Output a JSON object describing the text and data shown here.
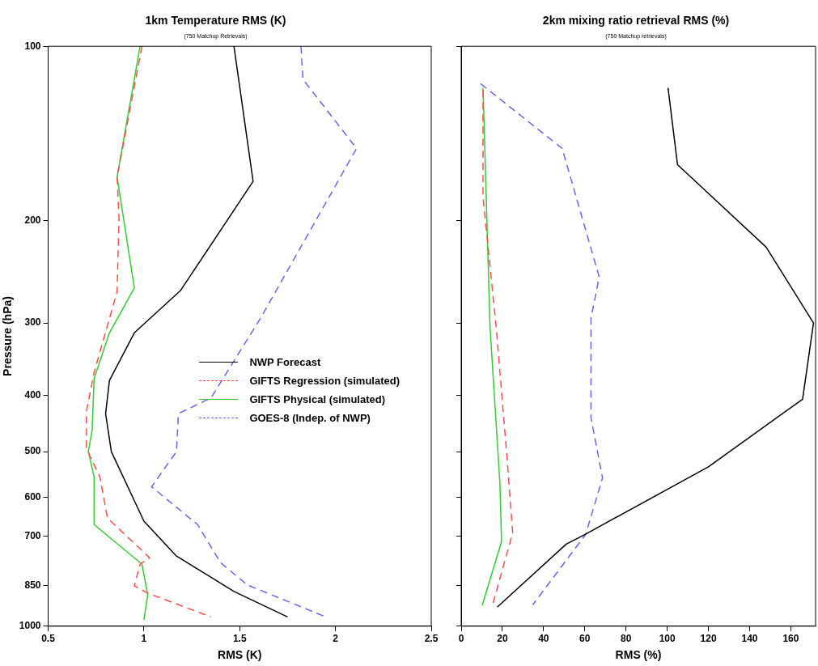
{
  "chart_data": [
    {
      "type": "line",
      "title": "1km Temperature RMS (K)",
      "subtitle": "(750 Matchup Retrievals)",
      "xlabel": "RMS (K)",
      "ylabel": "Pressure (hPa)",
      "xlim": [
        0.5,
        2.5
      ],
      "xticks": [
        0.5,
        1,
        1.5,
        2,
        2.5
      ],
      "ylim": [
        1000,
        100
      ],
      "yticks": [
        100,
        200,
        300,
        400,
        500,
        600,
        700,
        850,
        1000
      ],
      "log": "y",
      "grid": false,
      "legend": "center",
      "series": [
        {
          "name": "NWP Forecast",
          "color": "#000000",
          "line_style": "solid",
          "x": [
            1.47,
            1.57,
            1.19,
            0.95,
            0.82,
            0.8,
            0.83,
            1.0,
            1.17,
            1.47,
            1.75
          ],
          "values": [
            100,
            171,
            264,
            312,
            377,
            430,
            500,
            659,
            757,
            871,
            964
          ]
        },
        {
          "name": "GIFTS Regression (simulated)",
          "color": "#ff4d4d",
          "line_style": "dashed",
          "x": [
            0.99,
            0.86,
            0.87,
            0.86,
            0.74,
            0.7,
            0.7,
            0.77,
            0.81,
            1.03,
            0.98,
            0.95,
            1.02,
            1.35
          ],
          "values": [
            100,
            168,
            198,
            265,
            365,
            426,
            494,
            553,
            651,
            762,
            782,
            852,
            877,
            964
          ]
        },
        {
          "name": "GIFTS Physical (simulated)",
          "color": "#33cc33",
          "line_style": "solid",
          "x": [
            0.98,
            0.86,
            0.95,
            0.82,
            0.74,
            0.73,
            0.71,
            0.74,
            0.74,
            0.99,
            1.02,
            1.0
          ],
          "values": [
            100,
            168,
            261,
            312,
            374,
            458,
            500,
            553,
            668,
            782,
            883,
            975
          ]
        },
        {
          "name": "GOES-8 (Indep. of NWP)",
          "color": "#6666ee",
          "line_style": "dashed",
          "x": [
            1.82,
            1.83,
            2.11,
            1.61,
            1.35,
            1.18,
            1.17,
            1.04,
            1.28,
            1.4,
            1.54,
            1.95
          ],
          "values": [
            100,
            114,
            150,
            294,
            404,
            430,
            500,
            575,
            668,
            777,
            849,
            964
          ]
        }
      ]
    },
    {
      "type": "line",
      "title": "2km mixing ratio retrieval RMS (%)",
      "subtitle": "(750 Matchup retrievals)",
      "xlabel": "RMS (%)",
      "xlim": [
        0,
        172
      ],
      "xticks": [
        0,
        20,
        40,
        60,
        80,
        100,
        120,
        140,
        160
      ],
      "ylim": [
        1000,
        100
      ],
      "yticks": [
        100,
        200,
        300,
        400,
        500,
        600,
        700,
        850,
        1000
      ],
      "log": "y",
      "grid": false,
      "tick_labels": "x",
      "series": [
        {
          "color": "#000000",
          "line_style": "solid",
          "x": [
            100.4,
            105,
            148,
            171,
            165.7,
            120,
            60,
            51,
            17.5
          ],
          "values": [
            118,
            160,
            222,
            300,
            406,
            531,
            695,
            722,
            927
          ]
        },
        {
          "color": "#ff4d4d",
          "line_style": "dashed",
          "x": [
            10.6,
            10.6,
            17,
            22.4,
            25,
            15.5
          ],
          "values": [
            119,
            182,
            305,
            520,
            690,
            912
          ]
        },
        {
          "color": "#33cc33",
          "line_style": "solid",
          "x": [
            10.6,
            14,
            18.8,
            19.6,
            10.2
          ],
          "values": [
            118,
            305,
            567,
            714,
            921
          ]
        },
        {
          "color": "#6666ee",
          "line_style": "dashed",
          "x": [
            9.4,
            49,
            67,
            63,
            63,
            68.6,
            60.4,
            34.7
          ],
          "values": [
            116,
            150,
            250,
            294,
            437,
            555,
            695,
            919
          ]
        }
      ]
    }
  ]
}
